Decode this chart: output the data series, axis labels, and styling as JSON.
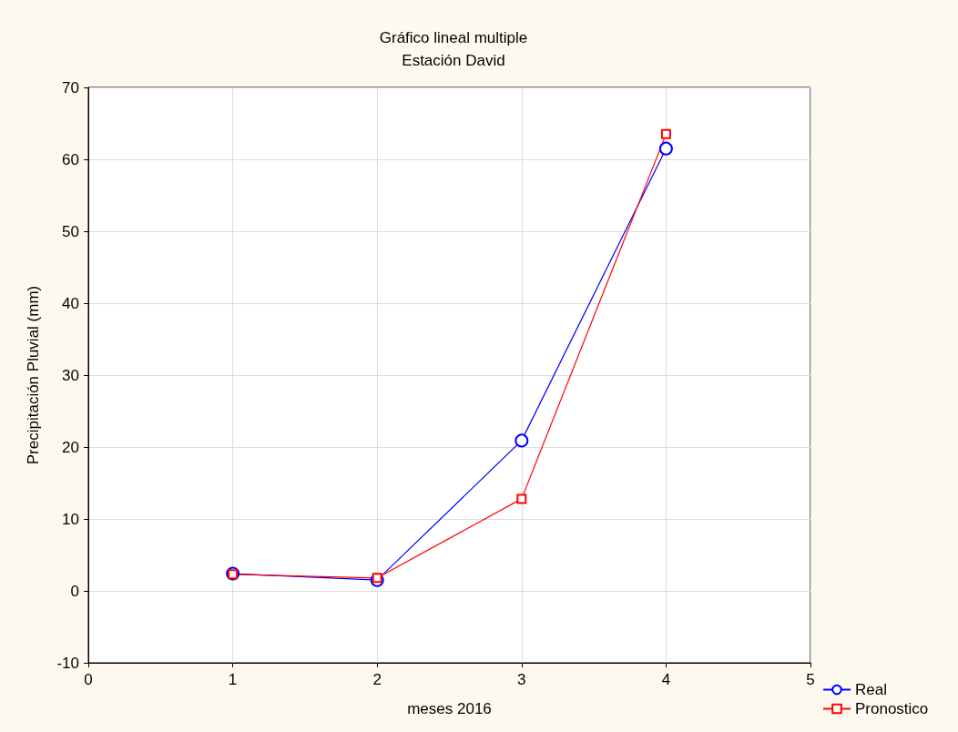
{
  "chart_data": {
    "type": "line",
    "title": "Gráfico lineal multiple",
    "subtitle": "Estación David",
    "xlabel": "meses 2016",
    "ylabel": "Precipitación Pluvial (mm)",
    "x": [
      1,
      2,
      3,
      4
    ],
    "series": [
      {
        "name": "Real",
        "color": "#0000ff",
        "marker": "circle",
        "values": [
          2.4,
          1.5,
          20.9,
          61.5
        ]
      },
      {
        "name": "Pronostico",
        "color": "#ff0000",
        "marker": "square",
        "values": [
          2.3,
          1.8,
          12.8,
          63.5
        ]
      }
    ],
    "xlim": [
      0,
      5
    ],
    "xticks": [
      0,
      1,
      2,
      3,
      4,
      5
    ],
    "ylim": [
      -10,
      70
    ],
    "yticks": [
      -10,
      0,
      10,
      20,
      30,
      40,
      50,
      60,
      70
    ],
    "grid": true,
    "legend": "bottom right",
    "line_style": "solid"
  }
}
